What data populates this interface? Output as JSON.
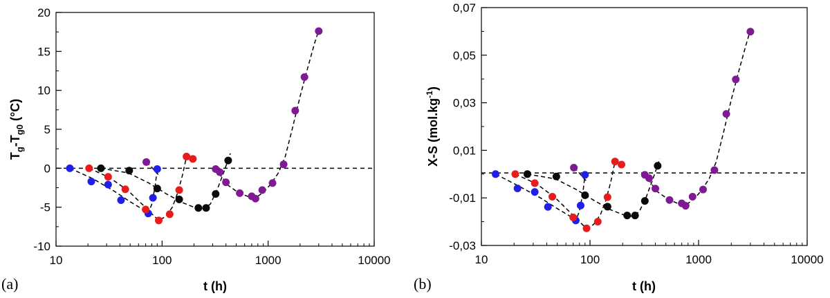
{
  "chart_data": [
    {
      "type": "scatter",
      "panel_label": "(a)",
      "xlabel": "t (h)",
      "ylabel": "T_g-T_g0 (°C)",
      "ylabel_parts": {
        "t1": "T",
        "s1": "g",
        "mid": "-T",
        "s2": "g0",
        "unit": " (°C)"
      },
      "xscale": "log",
      "xlim": [
        10,
        10000
      ],
      "ylim": [
        -10,
        20
      ],
      "xticks": [
        10,
        100,
        1000,
        10000
      ],
      "xtick_labels": [
        "10",
        "100",
        "1000",
        "10000"
      ],
      "yticks": [
        -10,
        -5,
        0,
        5,
        10,
        15,
        20
      ],
      "ytick_labels": [
        "-10",
        "-5",
        "0",
        "5",
        "10",
        "15",
        "20"
      ],
      "reference_line": 0,
      "series": [
        {
          "name": "blue",
          "color": "#1f1fe8",
          "points": [
            [
              13.5,
              0
            ],
            [
              21.5,
              -1.7
            ],
            [
              31,
              -2.1
            ],
            [
              41,
              -4.1
            ],
            [
              74,
              -5.8
            ],
            [
              82,
              -3.8
            ],
            [
              90,
              -0.1
            ]
          ],
          "curves": [
            [
              [
                13.5,
                0
              ],
              [
                22,
                -1.3
              ],
              [
                35,
                -2.9
              ],
              [
                50,
                -4.3
              ],
              [
                66,
                -5.3
              ],
              [
                74,
                -5.8
              ],
              [
                80,
                -4.6
              ],
              [
                86,
                -2.3
              ],
              [
                90,
                -0.1
              ]
            ]
          ]
        },
        {
          "name": "red",
          "color": "#e81c1c",
          "points": [
            [
              20.5,
              0
            ],
            [
              31,
              -1.1
            ],
            [
              45,
              -2.7
            ],
            [
              70,
              -5.3
            ],
            [
              93,
              -6.7
            ],
            [
              118,
              -5.9
            ],
            [
              145,
              -2.8
            ],
            [
              170,
              1.5
            ],
            [
              195,
              1.2
            ]
          ],
          "curves": [
            [
              [
                20.5,
                0
              ],
              [
                32,
                -1.2
              ],
              [
                48,
                -2.9
              ],
              [
                68,
                -4.9
              ],
              [
                85,
                -6.2
              ],
              [
                93,
                -6.7
              ],
              [
                108,
                -6.2
              ],
              [
                125,
                -5.0
              ],
              [
                140,
                -3.2
              ],
              [
                155,
                -1.0
              ],
              [
                170,
                1.5
              ]
            ]
          ]
        },
        {
          "name": "black",
          "color": "#0a0a0a",
          "points": [
            [
              26.5,
              0
            ],
            [
              49,
              -0.3
            ],
            [
              90,
              -2.6
            ],
            [
              145,
              -4.0
            ],
            [
              220,
              -5.1
            ],
            [
              260,
              -5.1
            ],
            [
              320,
              -3.3
            ],
            [
              420,
              1.0
            ]
          ],
          "curves": [
            [
              [
                26.5,
                0
              ],
              [
                48,
                -0.6
              ],
              [
                75,
                -1.9
              ],
              [
                110,
                -3.3
              ],
              [
                155,
                -4.4
              ],
              [
                200,
                -5.0
              ],
              [
                245,
                -5.2
              ],
              [
                285,
                -4.6
              ],
              [
                330,
                -2.8
              ],
              [
                380,
                -0.6
              ],
              [
                440,
                1.9
              ]
            ]
          ]
        },
        {
          "name": "purple",
          "color": "#7f1a93",
          "points": [
            [
              71,
              0.8
            ],
            [
              320,
              -0.1
            ],
            [
              350,
              -0.5
            ],
            [
              400,
              -1.8
            ],
            [
              540,
              -3.2
            ],
            [
              700,
              -3.6
            ],
            [
              760,
              -3.9
            ],
            [
              880,
              -2.8
            ],
            [
              1100,
              -1.9
            ],
            [
              1400,
              0.5
            ],
            [
              1800,
              7.4
            ],
            [
              2200,
              11.7
            ],
            [
              3000,
              17.6
            ]
          ],
          "curves": [
            [
              [
                71,
                0.8
              ],
              [
                78,
                0.3
              ],
              [
                86,
                -0.4
              ],
              [
                92,
                -0.8
              ]
            ],
            [
              [
                310,
                0
              ],
              [
                350,
                -0.8
              ],
              [
                420,
                -2.2
              ],
              [
                520,
                -3.1
              ],
              [
                640,
                -3.6
              ],
              [
                760,
                -3.8
              ],
              [
                900,
                -3.1
              ],
              [
                1050,
                -2.1
              ],
              [
                1250,
                -0.6
              ],
              [
                1450,
                1.5
              ],
              [
                1700,
                5.2
              ],
              [
                2000,
                9.2
              ],
              [
                2350,
                12.8
              ],
              [
                2750,
                16.1
              ],
              [
                3050,
                18.0
              ]
            ]
          ]
        }
      ]
    },
    {
      "type": "scatter",
      "panel_label": "(b)",
      "xlabel": "t (h)",
      "ylabel": "X-S (mol.kg-1)",
      "ylabel_parts": {
        "main": "X-S (mol.kg",
        "sup": "-1",
        "close": ")"
      },
      "xscale": "log",
      "xlim": [
        10,
        10000
      ],
      "ylim": [
        -0.03,
        0.07
      ],
      "xticks": [
        10,
        100,
        1000,
        10000
      ],
      "xtick_labels": [
        "10",
        "100",
        "1000",
        "10000"
      ],
      "yticks": [
        -0.03,
        -0.01,
        0.01,
        0.03,
        0.05,
        0.07
      ],
      "ytick_labels": [
        "-0,03",
        "-0,01",
        "0,01",
        "0,03",
        "0,05",
        "0,07"
      ],
      "reference_line": 0.0005,
      "series": [
        {
          "name": "blue",
          "color": "#1f1fe8",
          "points": [
            [
              13.5,
              0
            ],
            [
              21.5,
              -0.006
            ],
            [
              31,
              -0.0075
            ],
            [
              41,
              -0.0138
            ],
            [
              74,
              -0.0195
            ],
            [
              82,
              -0.0132
            ],
            [
              90,
              -0.0003
            ]
          ],
          "curves": [
            [
              [
                13.5,
                0
              ],
              [
                22,
                -0.005
              ],
              [
                35,
                -0.01
              ],
              [
                50,
                -0.0145
              ],
              [
                66,
                -0.0178
              ],
              [
                74,
                -0.0195
              ],
              [
                80,
                -0.0155
              ],
              [
                86,
                -0.008
              ],
              [
                90,
                -0.0003
              ]
            ]
          ]
        },
        {
          "name": "red",
          "color": "#e81c1c",
          "points": [
            [
              20.5,
              0
            ],
            [
              31,
              -0.0038
            ],
            [
              45,
              -0.0095
            ],
            [
              70,
              -0.0182
            ],
            [
              93,
              -0.0228
            ],
            [
              118,
              -0.02
            ],
            [
              145,
              -0.0097
            ],
            [
              170,
              0.0053
            ],
            [
              195,
              0.004
            ]
          ],
          "curves": [
            [
              [
                20.5,
                0
              ],
              [
                32,
                -0.004
              ],
              [
                48,
                -0.01
              ],
              [
                68,
                -0.0168
              ],
              [
                85,
                -0.0212
              ],
              [
                93,
                -0.0228
              ],
              [
                108,
                -0.0212
              ],
              [
                125,
                -0.017
              ],
              [
                140,
                -0.011
              ],
              [
                155,
                -0.0035
              ],
              [
                170,
                0.0053
              ]
            ]
          ]
        },
        {
          "name": "black",
          "color": "#0a0a0a",
          "points": [
            [
              26.5,
              0
            ],
            [
              49,
              -0.001
            ],
            [
              90,
              -0.0089
            ],
            [
              145,
              -0.0137
            ],
            [
              220,
              -0.0174
            ],
            [
              260,
              -0.0174
            ],
            [
              320,
              -0.0113
            ],
            [
              420,
              0.0035
            ]
          ],
          "curves": [
            [
              [
                26.5,
                0
              ],
              [
                48,
                -0.002
              ],
              [
                75,
                -0.0065
              ],
              [
                110,
                -0.0112
              ],
              [
                155,
                -0.015
              ],
              [
                200,
                -0.017
              ],
              [
                245,
                -0.0178
              ],
              [
                285,
                -0.0157
              ],
              [
                330,
                -0.0096
              ],
              [
                380,
                -0.002
              ],
              [
                440,
                0.0065
              ]
            ]
          ]
        },
        {
          "name": "purple",
          "color": "#7f1a93",
          "points": [
            [
              71,
              0.0027
            ],
            [
              320,
              -0.0003
            ],
            [
              350,
              -0.0017
            ],
            [
              400,
              -0.0061
            ],
            [
              540,
              -0.0109
            ],
            [
              700,
              -0.0123
            ],
            [
              760,
              -0.0133
            ],
            [
              880,
              -0.0095
            ],
            [
              1100,
              -0.0065
            ],
            [
              1400,
              0.0017
            ],
            [
              1800,
              0.0253
            ],
            [
              2200,
              0.0398
            ],
            [
              3000,
              0.0599
            ]
          ],
          "curves": [
            [
              [
                71,
                0.0027
              ],
              [
                78,
                0.001
              ],
              [
                86,
                -0.0014
              ],
              [
                92,
                -0.0027
              ]
            ],
            [
              [
                310,
                0
              ],
              [
                350,
                -0.0027
              ],
              [
                420,
                -0.0075
              ],
              [
                520,
                -0.0105
              ],
              [
                640,
                -0.0123
              ],
              [
                760,
                -0.013
              ],
              [
                900,
                -0.0106
              ],
              [
                1050,
                -0.0072
              ],
              [
                1250,
                -0.002
              ],
              [
                1450,
                0.005
              ],
              [
                1700,
                0.0177
              ],
              [
                2000,
                0.0313
              ],
              [
                2350,
                0.0435
              ],
              [
                2750,
                0.0548
              ],
              [
                3050,
                0.0615
              ]
            ]
          ]
        }
      ]
    }
  ]
}
